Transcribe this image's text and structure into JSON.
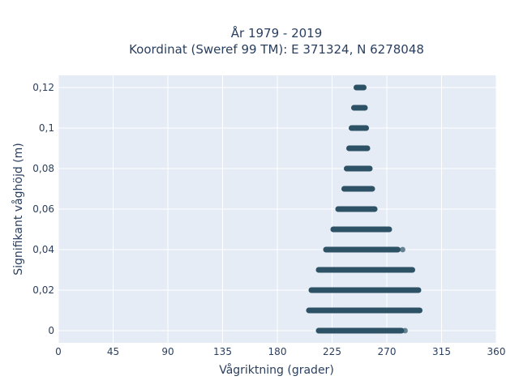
{
  "chart_data": {
    "type": "scatter",
    "title": "År 1979 - 2019",
    "subtitle": "Koordinat (Sweref 99 TM): E 371324, N 6278048",
    "xlabel": "Vågriktning (grader)",
    "ylabel": "Signifikant våghöjd (m)",
    "xlim": [
      0,
      360
    ],
    "ylim": [
      -0.006,
      0.126
    ],
    "x_ticks": [
      0,
      45,
      90,
      135,
      180,
      225,
      270,
      315,
      360
    ],
    "y_ticks": [
      0,
      0.02,
      0.04,
      0.06,
      0.08,
      0.1,
      0.12
    ],
    "x_tick_labels": [
      "0",
      "45",
      "90",
      "135",
      "180",
      "225",
      "270",
      "315",
      "360"
    ],
    "y_tick_labels": [
      "0",
      "0,02",
      "0,04",
      "0,06",
      "0,08",
      "0,1",
      "0,12"
    ],
    "grid": true,
    "marker_color": "#2e5266",
    "plot_bg": "#e5ecf6",
    "bands": [
      {
        "y": 0,
        "x_min": 214,
        "x_max": 282,
        "outliers": [
          285
        ]
      },
      {
        "y": 0.01,
        "x_min": 206,
        "x_max": 297
      },
      {
        "y": 0.02,
        "x_min": 208,
        "x_max": 296
      },
      {
        "y": 0.03,
        "x_min": 214,
        "x_max": 291
      },
      {
        "y": 0.04,
        "x_min": 220,
        "x_max": 279,
        "outliers": [
          283
        ]
      },
      {
        "y": 0.05,
        "x_min": 226,
        "x_max": 272
      },
      {
        "y": 0.06,
        "x_min": 230,
        "x_max": 260
      },
      {
        "y": 0.07,
        "x_min": 235,
        "x_max": 258
      },
      {
        "y": 0.08,
        "x_min": 237,
        "x_max": 256
      },
      {
        "y": 0.09,
        "x_min": 239,
        "x_max": 254
      },
      {
        "y": 0.1,
        "x_min": 241,
        "x_max": 253
      },
      {
        "y": 0.11,
        "x_min": 243,
        "x_max": 252
      },
      {
        "y": 0.12,
        "x_min": 245,
        "x_max": 251
      }
    ]
  }
}
